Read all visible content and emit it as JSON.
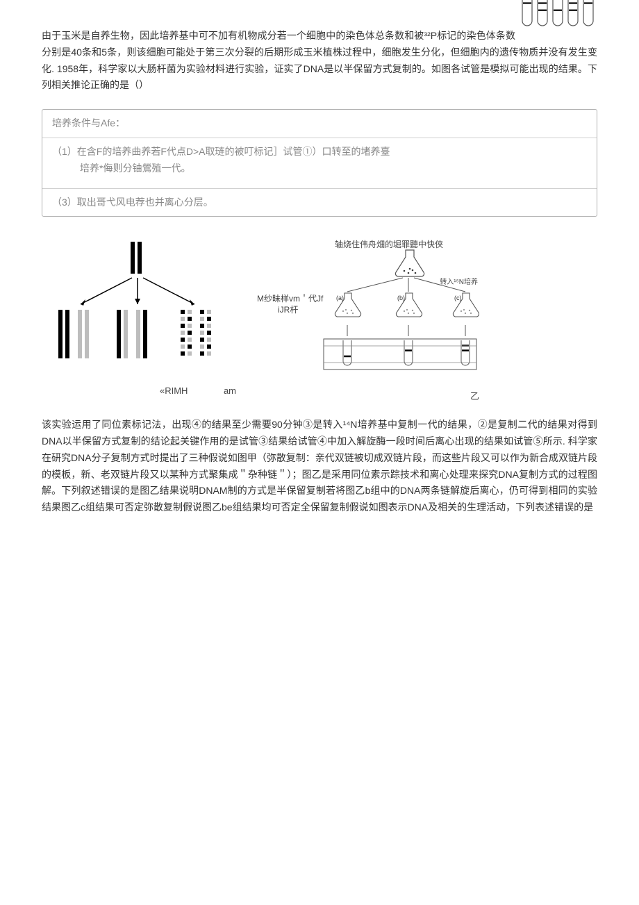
{
  "intro": {
    "text": "由于玉米是自养生物，因此培养基中可不加有机物成分若一个细胞中的染色体总条数和被³²P标记的染色体条数分别是40条和5条，则该细胞可能处于第三次分裂的后期形成玉米植株过程中，细胞发生分化，但细胞内的遗传物质并没有发生变化. 1958年，科学家以大肠杆菌为实验材料进行实验，证实了DNA是以半保留方式复制的。如图各试管是模拟可能出现的结果。下列相关推论正确的是（）"
  },
  "steps": {
    "title": "培养条件与Afe：",
    "row1_main": "（1）在含F的培养曲养若F代点D>A取琏的被叮标记］试管①）口转至的堵养臺",
    "row1_sub": "培养*侮则分铀鶯殖一代。",
    "row3": "（3）取出哥弋风电荐也并离心分层。"
  },
  "fig_left": {
    "caption_left": "«RIMH",
    "caption_right": "am",
    "colors": {
      "solid": "#000000",
      "light": "#bdbdbd",
      "dash": "#000000"
    }
  },
  "fig_right": {
    "top_label": "轴烧住伟舟畑的堀罪聽中快侠",
    "transfer_label": "转入¹⁵N培养",
    "mid_label_1": "M纱昧样vm＇代Jf",
    "mid_label_2": "iJR杆",
    "flask_labels": [
      "(a)",
      "(b)",
      "(c)"
    ],
    "am_label": "am",
    "zi_label": "乙"
  },
  "conclusion": {
    "text": "该实验运用了同位素标记法，出现④的结果至少需要90分钟③是转入¹⁴N培养基中复制一代的结果，②是复制二代的结果对得到DNA以半保留方式复制的结论起关键作用的是试管③结果给试管④中加入解旋酶一段时间后离心出现的结果如试管⑤所示. 科学家在研究DNA分子复制方式时提出了三种假说如图甲（弥散复制：亲代双链被切成双链片段，而这些片段又可以作为新合成双链片段的模板，新、老双链片段又以某种方式聚集成＂杂种链＂）；图乙是采用同位素示踪技术和离心处理来探究DNA复制方式的过程图解。下列叙述错误的是图乙结果说明DNAM制的方式是半保留复制若将图乙b组中的DNA两条链解旋后离心，仍可得到相同的实验结果图乙c组结果可否定弥散复制假说图乙be组结果均可否定全保留复制假说如图表示DNA及相关的生理活动，下列表述错误的是"
  },
  "tubes": {
    "count": 5,
    "stroke": "#555555",
    "bands": [
      [
        0.25
      ],
      [
        0.25,
        0.55
      ],
      [
        0.55
      ],
      [
        0.25,
        0.55
      ],
      [
        0.25
      ]
    ]
  }
}
